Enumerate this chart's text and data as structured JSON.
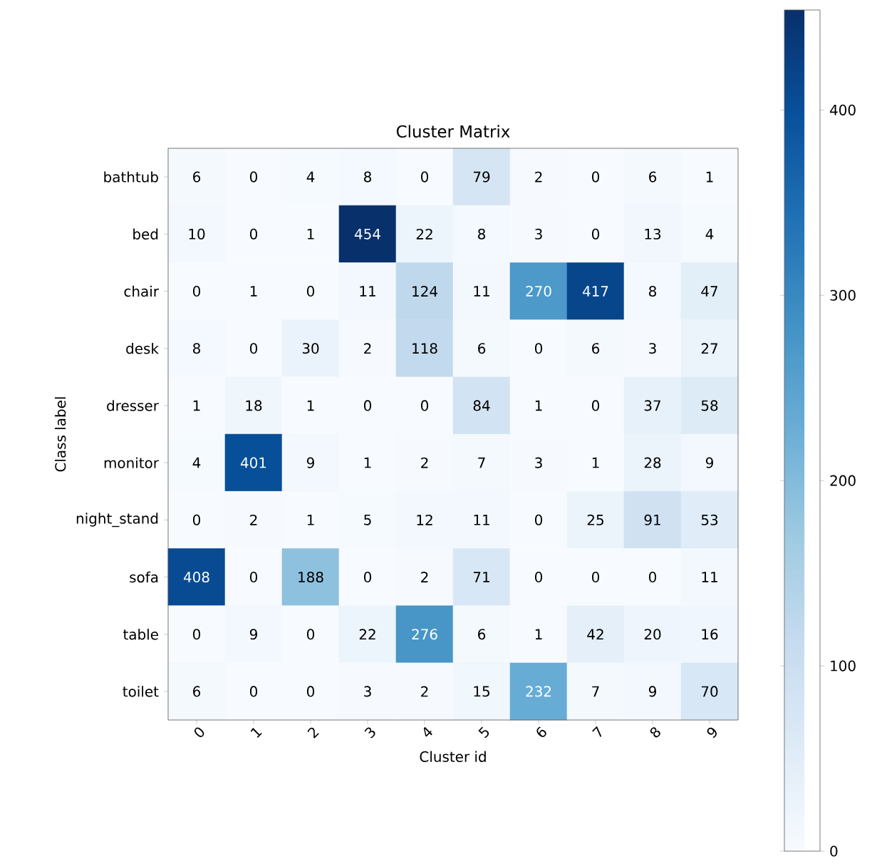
{
  "chart_data": {
    "type": "heatmap",
    "title": "Cluster Matrix",
    "xlabel": "Cluster id",
    "ylabel": "Class label",
    "categories": [
      "0",
      "1",
      "2",
      "3",
      "4",
      "5",
      "6",
      "7",
      "8",
      "9"
    ],
    "y_categories": [
      "bathtub",
      "bed",
      "chair",
      "desk",
      "dresser",
      "monitor",
      "night_stand",
      "sofa",
      "table",
      "toilet"
    ],
    "cells": [
      [
        6,
        0,
        4,
        8,
        0,
        79,
        2,
        0,
        6,
        1
      ],
      [
        10,
        0,
        1,
        454,
        22,
        8,
        3,
        0,
        13,
        4
      ],
      [
        0,
        1,
        0,
        11,
        124,
        11,
        270,
        417,
        8,
        47
      ],
      [
        8,
        0,
        30,
        2,
        118,
        6,
        0,
        6,
        3,
        27
      ],
      [
        1,
        18,
        1,
        0,
        0,
        84,
        1,
        0,
        37,
        58
      ],
      [
        4,
        401,
        9,
        1,
        2,
        7,
        3,
        1,
        28,
        9
      ],
      [
        0,
        2,
        1,
        5,
        12,
        11,
        0,
        25,
        91,
        53
      ],
      [
        408,
        0,
        188,
        0,
        2,
        71,
        0,
        0,
        0,
        11
      ],
      [
        0,
        9,
        0,
        22,
        276,
        6,
        1,
        42,
        20,
        16
      ],
      [
        6,
        0,
        0,
        3,
        2,
        15,
        232,
        7,
        9,
        70
      ]
    ],
    "clim": [
      0,
      454
    ],
    "cticks": [
      0,
      100,
      200,
      300,
      400
    ],
    "data_labels": true
  }
}
